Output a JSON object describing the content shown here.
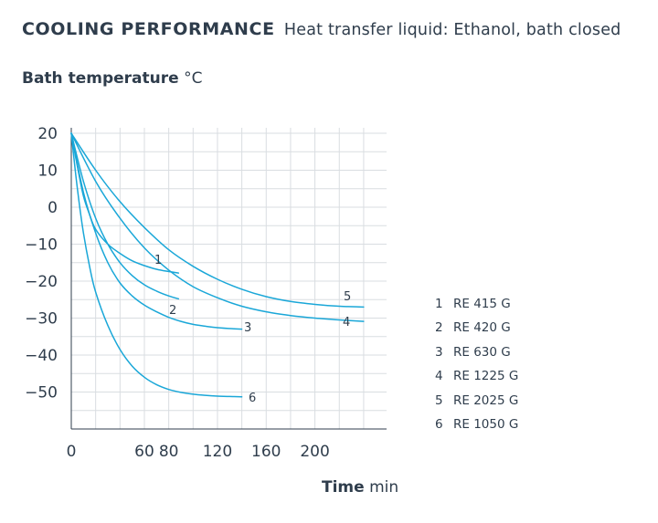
{
  "header": {
    "title": "COOLING PERFORMANCE",
    "subtitle": "Heat transfer liquid: Ethanol, bath closed"
  },
  "chart_data": {
    "type": "line",
    "ylabel": "Bath temperature",
    "yunit": "°C",
    "xlabel": "Time",
    "xunit": "min",
    "xlim": [
      0,
      260
    ],
    "ylim": [
      -60,
      20
    ],
    "xticks": [
      0,
      60,
      80,
      120,
      160,
      200
    ],
    "yticks": [
      20,
      10,
      0,
      -10,
      -20,
      -30,
      -40,
      -50
    ],
    "grid": true,
    "legend_position": "right",
    "line_color": "#1aa7d8",
    "series": [
      {
        "name": "RE 415 G",
        "label": "1",
        "x": [
          0,
          5,
          10,
          15,
          20,
          30,
          40,
          50,
          60,
          70,
          80,
          88
        ],
        "y": [
          20,
          11,
          3,
          -2,
          -6,
          -10,
          -12.5,
          -14.5,
          -15.8,
          -16.8,
          -17.4,
          -17.8
        ]
      },
      {
        "name": "RE 420 G",
        "label": "2",
        "x": [
          0,
          10,
          20,
          30,
          40,
          50,
          60,
          70,
          80,
          88
        ],
        "y": [
          20,
          7,
          -3,
          -10,
          -15,
          -18.5,
          -21,
          -22.7,
          -24,
          -24.8
        ]
      },
      {
        "name": "RE 630 G",
        "label": "3",
        "x": [
          0,
          10,
          20,
          30,
          40,
          50,
          60,
          70,
          80,
          90,
          100,
          110,
          120,
          140
        ],
        "y": [
          20,
          4,
          -7,
          -15,
          -20.5,
          -24,
          -26.5,
          -28.3,
          -29.8,
          -30.9,
          -31.7,
          -32.2,
          -32.6,
          -33
        ]
      },
      {
        "name": "RE 1225 G",
        "label": "4",
        "x": [
          0,
          20,
          40,
          60,
          80,
          100,
          120,
          140,
          160,
          180,
          200,
          220,
          240
        ],
        "y": [
          20,
          7,
          -3,
          -11,
          -17,
          -21.5,
          -24.5,
          -26.8,
          -28.3,
          -29.3,
          -30,
          -30.5,
          -30.9
        ]
      },
      {
        "name": "RE 2025 G",
        "label": "5",
        "x": [
          0,
          20,
          40,
          60,
          80,
          100,
          120,
          140,
          160,
          180,
          200,
          220,
          240
        ],
        "y": [
          20,
          10,
          1.5,
          -5.5,
          -11.5,
          -16,
          -19.5,
          -22.2,
          -24.2,
          -25.5,
          -26.3,
          -26.8,
          -27
        ]
      },
      {
        "name": "RE 1050 G",
        "label": "6",
        "x": [
          0,
          5,
          10,
          15,
          20,
          30,
          40,
          50,
          60,
          70,
          80,
          90,
          100,
          110,
          120,
          130,
          140
        ],
        "y": [
          20,
          5,
          -7,
          -16,
          -23,
          -32,
          -38.5,
          -43,
          -46,
          -48,
          -49.3,
          -50.1,
          -50.6,
          -50.9,
          -51.1,
          -51.2,
          -51.3
        ]
      }
    ]
  }
}
